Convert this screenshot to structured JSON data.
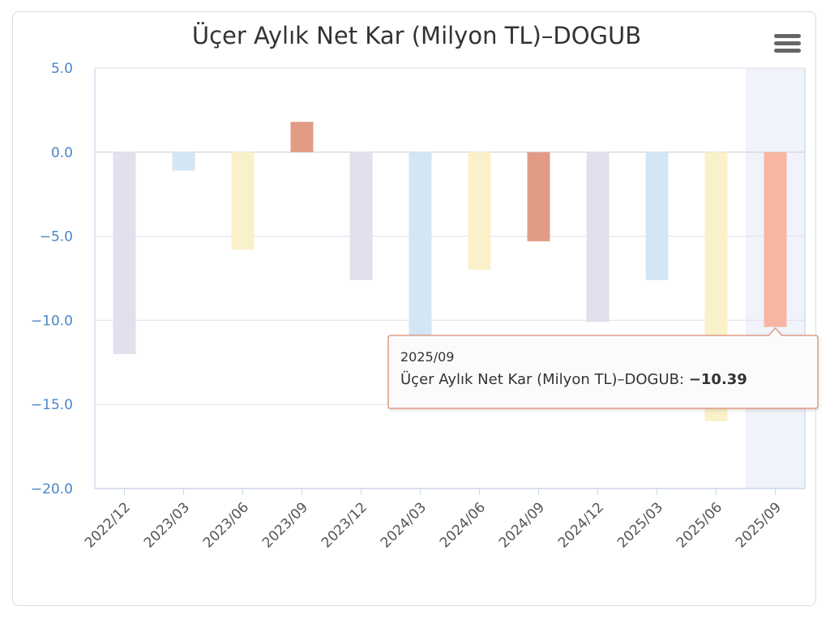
{
  "chart_data": {
    "type": "bar",
    "title": "Üçer Aylık Net Kar (Milyon TL)–DOGUB",
    "xlabel": "",
    "ylabel": "",
    "ylim": [
      -20,
      5
    ],
    "yticks": [
      "5.0",
      "0.0",
      "−5.0",
      "−10.0",
      "−15.0",
      "−20.0"
    ],
    "ytick_values": [
      5,
      0,
      -5,
      -10,
      -15,
      -20
    ],
    "categories": [
      "2022/12",
      "2023/03",
      "2023/06",
      "2023/09",
      "2023/12",
      "2024/03",
      "2024/06",
      "2024/09",
      "2024/12",
      "2025/03",
      "2025/06",
      "2025/09"
    ],
    "series": [
      {
        "values": [
          -12.0,
          -1.1,
          -5.8,
          1.8,
          -7.6,
          -11.0,
          -7.0,
          -5.3,
          -10.1,
          -7.6,
          -16.0,
          -10.39
        ]
      }
    ],
    "bar_colors": [
      "#e3dfec",
      "#d4e6f3",
      "#fbf1c9",
      "#e19c86",
      "#e3dfec",
      "#d4e6f3",
      "#fbf1c9",
      "#e19c86",
      "#e3dfec",
      "#d4e6f3",
      "#fbf1c9",
      "#f8b5a2"
    ],
    "highlighted_category": "2025/09",
    "grid": true,
    "legend": "none"
  },
  "tooltip": {
    "header": "2025/09",
    "series_label": "Üçer Aylık Net Kar (Milyon TL)–DOGUB: ",
    "value": "−10.39",
    "border_color": "#e19c86"
  },
  "menu": {
    "icon": "hamburger-menu-icon"
  }
}
